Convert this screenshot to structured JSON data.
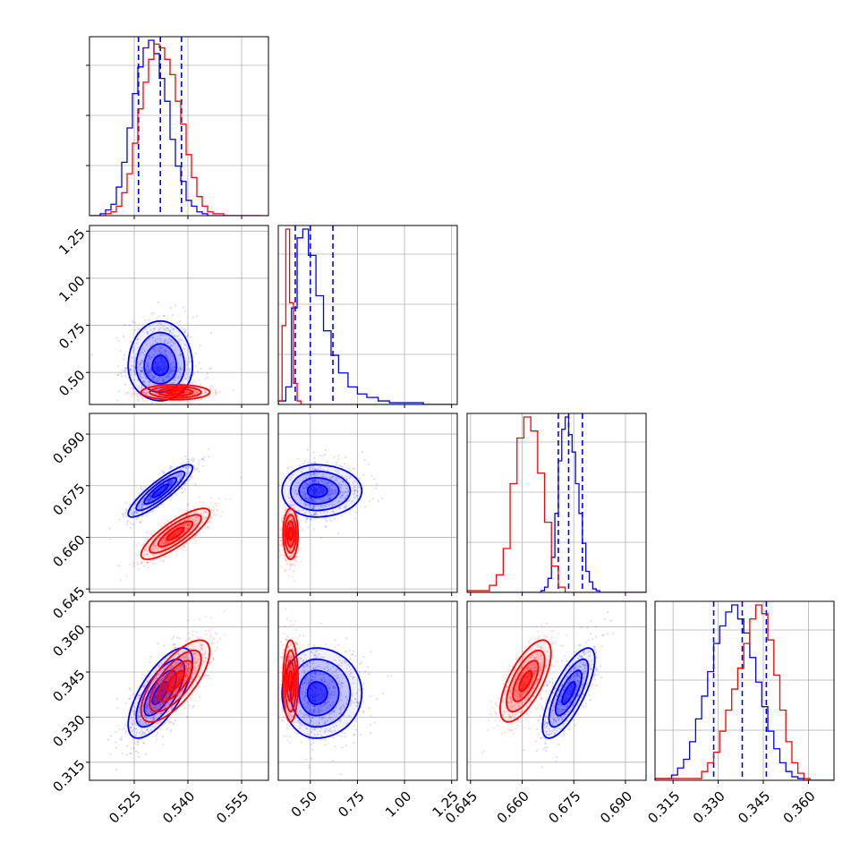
{
  "chart_data": {
    "type": "corner",
    "grid": true,
    "params": [
      {
        "range": [
          0.5125,
          0.5625
        ],
        "ticks": [
          0.525,
          0.54,
          0.555
        ],
        "tick_labels": [
          "0.525",
          "0.540",
          "0.555"
        ]
      },
      {
        "range": [
          0.33,
          1.28
        ],
        "ticks": [
          0.5,
          0.75,
          1.0,
          1.25
        ],
        "tick_labels": [
          "0.50",
          "0.75",
          "1.00",
          "1.25"
        ]
      },
      {
        "range": [
          0.644,
          0.696
        ],
        "ticks": [
          0.645,
          0.66,
          0.675,
          0.69
        ],
        "tick_labels": [
          "0.645",
          "0.660",
          "0.675",
          "0.690"
        ]
      },
      {
        "range": [
          0.309,
          0.3685
        ],
        "ticks": [
          0.315,
          0.33,
          0.345,
          0.36
        ],
        "tick_labels": [
          "0.315",
          "0.330",
          "0.345",
          "0.360"
        ]
      }
    ],
    "series": [
      {
        "color": "#0000ff",
        "means": [
          0.5323,
          0.53,
          0.6735,
          0.338
        ],
        "sigmas": [
          0.0045,
          0.09,
          0.0038,
          0.0075
        ],
        "quantiles": [
          [
            0.5262,
            0.5323,
            0.5382
          ],
          [
            0.42,
            0.5,
            0.62
          ],
          [
            0.6705,
            0.6735,
            0.6775
          ],
          [
            0.3285,
            0.338,
            0.346
          ]
        ],
        "correlations": [
          [
            0,
            1,
            0.0
          ],
          [
            0,
            2,
            0.88
          ],
          [
            0,
            3,
            0.7
          ],
          [
            1,
            2,
            0.0
          ],
          [
            1,
            3,
            0.0
          ],
          [
            2,
            3,
            0.75
          ]
        ],
        "histograms": [
          {
            "bins": [
              0.5125,
              0.514,
              0.5155,
              0.517,
              0.5185,
              0.52,
              0.5215,
              0.523,
              0.5245,
              0.526,
              0.5275,
              0.529,
              0.5305,
              0.532,
              0.5335,
              0.535,
              0.5365,
              0.538,
              0.5395,
              0.541,
              0.5425,
              0.544,
              0.5455,
              0.547,
              0.5485,
              0.55,
              0.5515,
              0.553,
              0.5545,
              0.556,
              0.5575,
              0.559,
              0.5605
            ],
            "counts": [
              0,
              0,
              1,
              3,
              6,
              15,
              28,
              46,
              64,
              78,
              88,
              92,
              85,
              72,
              60,
              40,
              26,
              18,
              8,
              5,
              2,
              1,
              0,
              0,
              0,
              0,
              0,
              0,
              0,
              0,
              0,
              0
            ]
          },
          {
            "bins": [
              0.33,
              0.37,
              0.4,
              0.43,
              0.46,
              0.49,
              0.53,
              0.57,
              0.61,
              0.65,
              0.7,
              0.75,
              0.8,
              0.86,
              0.92,
              1.0,
              1.1,
              1.25
            ],
            "counts": [
              2,
              10,
              55,
              95,
              100,
              85,
              62,
              42,
              28,
              18,
              10,
              6,
              4,
              2,
              1,
              1,
              0
            ]
          },
          {
            "bins": [
              0.644,
              0.6655,
              0.6665,
              0.6675,
              0.6685,
              0.6695,
              0.6705,
              0.6715,
              0.6725,
              0.6735,
              0.6745,
              0.6755,
              0.6765,
              0.6775,
              0.6785,
              0.6795,
              0.6805,
              0.6815,
              0.6825,
              0.6835,
              0.696
            ],
            "counts": [
              0,
              1,
              3,
              8,
              20,
              45,
              75,
              93,
              100,
              90,
              80,
              62,
              45,
              28,
              12,
              6,
              2,
              1,
              0,
              0
            ]
          },
          {
            "bins": [
              0.309,
              0.3145,
              0.3165,
              0.3185,
              0.3205,
              0.3225,
              0.3245,
              0.3265,
              0.3285,
              0.3305,
              0.3325,
              0.3345,
              0.3365,
              0.3385,
              0.3405,
              0.3425,
              0.3445,
              0.3465,
              0.3485,
              0.3505,
              0.3525,
              0.3545,
              0.3565,
              0.3585,
              0.3685
            ],
            "counts": [
              1,
              3,
              7,
              12,
              22,
              35,
              48,
              62,
              78,
              88,
              96,
              100,
              92,
              84,
              70,
              56,
              42,
              28,
              18,
              10,
              5,
              2,
              1,
              0
            ]
          }
        ]
      },
      {
        "color": "#ff0000",
        "means": [
          0.5365,
          0.395,
          0.661,
          0.342
        ],
        "sigmas": [
          0.0048,
          0.02,
          0.0037,
          0.0068
        ],
        "quantiles": null,
        "correlations": [
          [
            0,
            1,
            0.0
          ],
          [
            0,
            2,
            0.82
          ],
          [
            0,
            3,
            0.72
          ],
          [
            1,
            2,
            0.0
          ],
          [
            1,
            3,
            0.0
          ],
          [
            2,
            3,
            0.68
          ]
        ],
        "histograms": [
          {
            "bins": [
              0.5125,
              0.517,
              0.5185,
              0.52,
              0.5215,
              0.523,
              0.5245,
              0.526,
              0.5275,
              0.529,
              0.5305,
              0.532,
              0.5335,
              0.535,
              0.5365,
              0.538,
              0.5395,
              0.541,
              0.5425,
              0.544,
              0.5455,
              0.547,
              0.5485,
              0.55,
              0.5515,
              0.553,
              0.5545,
              0.556,
              0.5625
            ],
            "counts": [
              0,
              1,
              2,
              5,
              12,
              22,
              38,
              56,
              70,
              82,
              90,
              88,
              82,
              74,
              60,
              48,
              32,
              20,
              10,
              5,
              2,
              1,
              1,
              0,
              0,
              0,
              0,
              0
            ]
          },
          {
            "bins": [
              0.33,
              0.35,
              0.37,
              0.39,
              0.41,
              0.43,
              0.45,
              1.28
            ],
            "counts": [
              2,
              45,
              100,
              58,
              12,
              2,
              0
            ]
          },
          {
            "bins": [
              0.644,
              0.6505,
              0.6525,
              0.6545,
              0.6565,
              0.6585,
              0.6605,
              0.6625,
              0.6645,
              0.6665,
              0.6685,
              0.6705,
              0.6725,
              0.696
            ],
            "counts": [
              1,
              4,
              10,
              25,
              62,
              88,
              100,
              92,
              68,
              40,
              15,
              3,
              0
            ]
          },
          {
            "bins": [
              0.309,
              0.3245,
              0.3265,
              0.3285,
              0.3305,
              0.3325,
              0.3345,
              0.3365,
              0.3385,
              0.3405,
              0.3425,
              0.3445,
              0.3465,
              0.3485,
              0.3505,
              0.3525,
              0.3545,
              0.3565,
              0.3585,
              0.3605,
              0.3685
            ],
            "counts": [
              1,
              5,
              10,
              16,
              28,
              40,
              52,
              64,
              78,
              92,
              100,
              95,
              80,
              60,
              40,
              22,
              10,
              4,
              1,
              0
            ]
          }
        ]
      }
    ]
  }
}
